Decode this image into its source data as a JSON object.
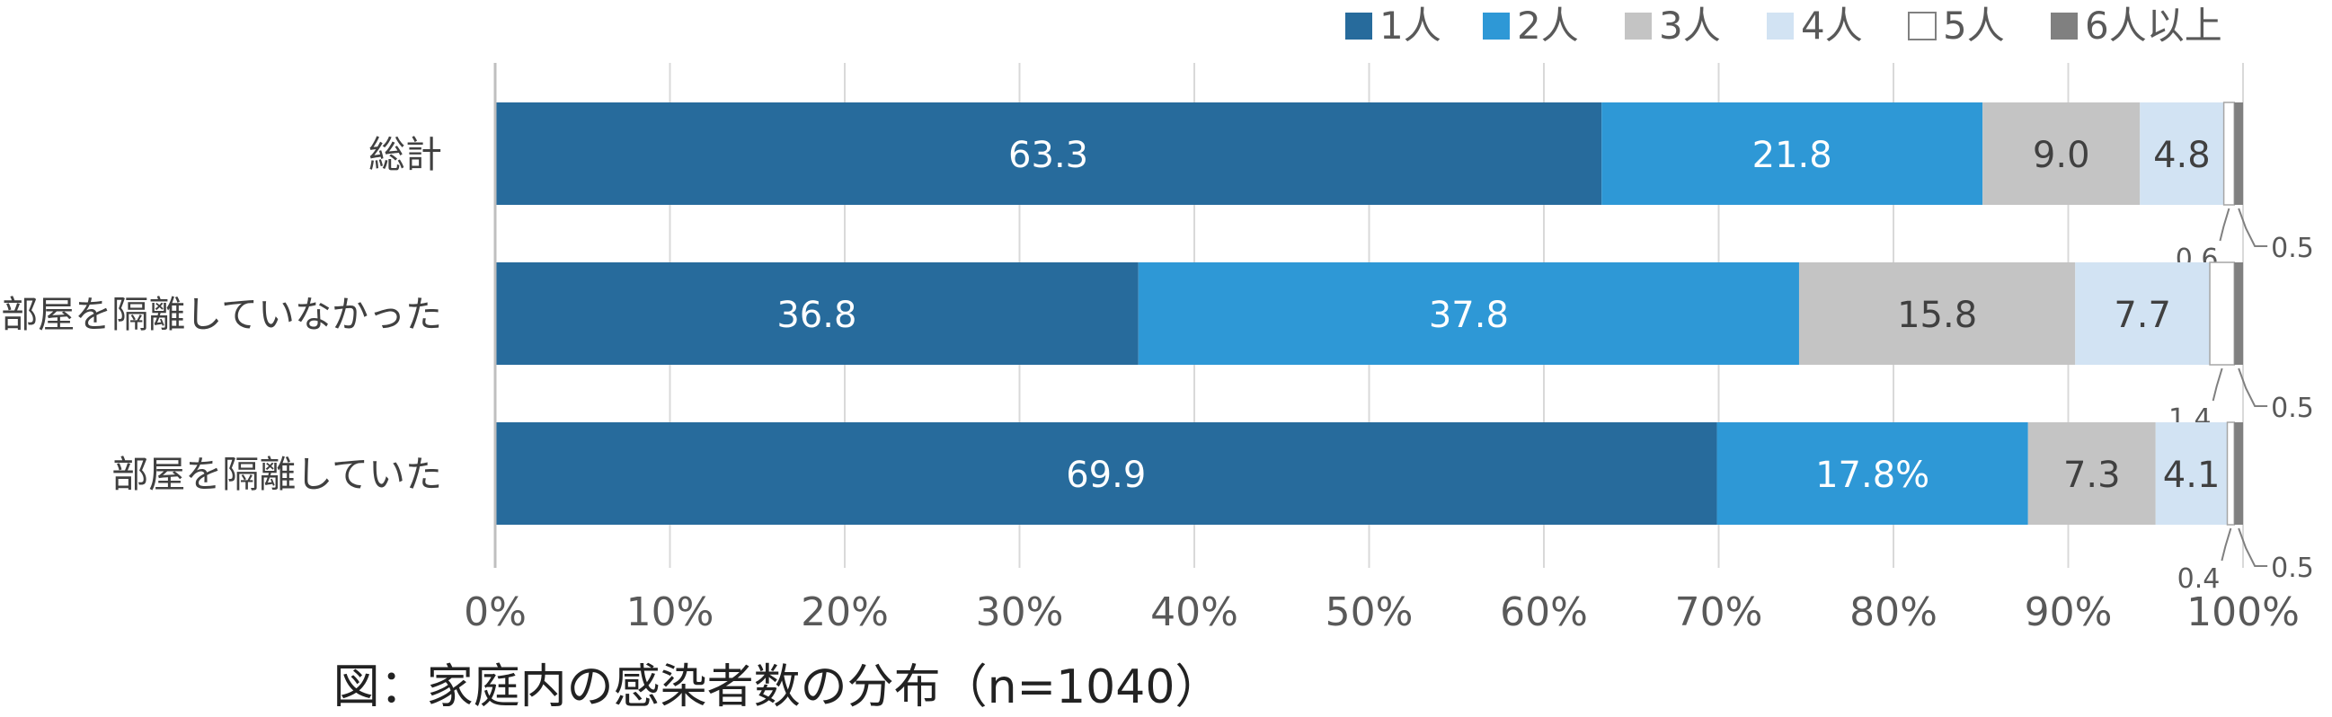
{
  "chart_data": {
    "type": "bar",
    "orientation": "horizontal",
    "stacked": true,
    "percent_scale": true,
    "categories": [
      "総計",
      "部屋を隔離していなかった",
      "部屋を隔離していた"
    ],
    "series": [
      {
        "name": "1人",
        "color": "#276b9c",
        "values": [
          63.3,
          36.8,
          69.9
        ]
      },
      {
        "name": "2人",
        "color": "#2e98d6",
        "values": [
          21.8,
          37.8,
          17.8
        ]
      },
      {
        "name": "3人",
        "color": "#c4c4c4",
        "values": [
          9.0,
          15.8,
          7.3
        ]
      },
      {
        "name": "4人",
        "color": "#d2e3f3",
        "values": [
          4.8,
          7.7,
          4.1
        ]
      },
      {
        "name": "5人",
        "color": "#ffffff",
        "values": [
          0.6,
          1.4,
          0.4
        ]
      },
      {
        "name": "6人以上",
        "color": "#808080",
        "values": [
          0.5,
          0.5,
          0.5
        ]
      }
    ],
    "data_labels": [
      [
        "63.3",
        "21.8",
        "9.0",
        "4.8",
        "0.6",
        "0.5"
      ],
      [
        "36.8",
        "37.8",
        "15.8",
        "7.7",
        "1.4",
        "0.5"
      ],
      [
        "69.9",
        "17.8%",
        "7.3",
        "4.1",
        "0.4",
        "0.5"
      ]
    ],
    "x_ticks": [
      "0%",
      "10%",
      "20%",
      "30%",
      "40%",
      "50%",
      "60%",
      "70%",
      "80%",
      "90%",
      "100%"
    ],
    "xlim": [
      0,
      100
    ],
    "grid": true,
    "legend_position": "top-right",
    "caption": "図：家庭内の感染者数の分布（n=1040）"
  }
}
